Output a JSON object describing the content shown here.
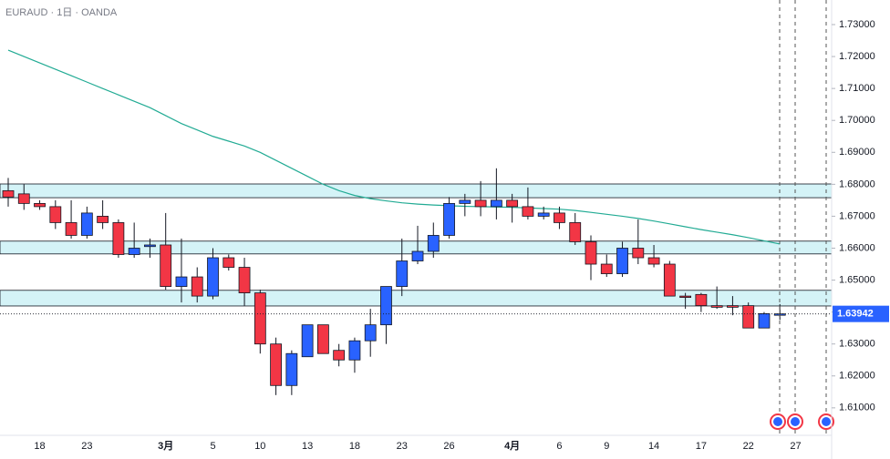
{
  "chart_data": {
    "type": "candlestick",
    "title": "EURAUD · 1日 · OANDA",
    "categories": [
      null,
      null,
      "18",
      null,
      null,
      "23",
      null,
      null,
      null,
      null,
      "3月",
      null,
      null,
      "5",
      null,
      null,
      "10",
      null,
      null,
      "13",
      null,
      null,
      "18",
      null,
      null,
      "23",
      null,
      null,
      "26",
      null,
      null,
      null,
      "4月",
      null,
      null,
      "6",
      null,
      null,
      "9",
      null,
      null,
      "14",
      null,
      null,
      "17",
      null,
      null,
      "22",
      null,
      null,
      "27"
    ],
    "open": [
      1.678,
      1.677,
      1.674,
      1.673,
      1.668,
      1.664,
      1.67,
      1.668,
      1.658,
      1.6605,
      1.661,
      1.648,
      1.651,
      1.645,
      1.657,
      1.654,
      1.646,
      1.63,
      1.617,
      1.626,
      1.636,
      1.628,
      1.625,
      1.631,
      1.636,
      1.648,
      1.656,
      1.659,
      1.664,
      1.674,
      1.675,
      1.673,
      1.675,
      1.673,
      1.67,
      1.671,
      1.668,
      1.662,
      1.655,
      1.652,
      1.66,
      1.657,
      1.655,
      1.645,
      1.6455,
      1.642,
      1.642,
      1.642,
      1.635,
      1.6392,
      null
    ],
    "high": [
      1.682,
      1.68,
      1.675,
      1.675,
      1.675,
      1.673,
      1.675,
      1.669,
      1.668,
      1.663,
      1.671,
      1.663,
      1.654,
      1.66,
      1.658,
      1.657,
      1.647,
      1.632,
      1.628,
      1.636,
      1.636,
      1.63,
      1.632,
      1.641,
      1.648,
      1.663,
      1.667,
      1.668,
      1.676,
      1.677,
      1.681,
      1.685,
      1.677,
      1.679,
      1.673,
      1.673,
      1.671,
      1.664,
      1.658,
      1.662,
      1.669,
      1.661,
      1.656,
      1.646,
      1.646,
      1.648,
      1.645,
      1.643,
      1.64,
      1.6425,
      null
    ],
    "low": [
      1.673,
      1.672,
      1.672,
      1.666,
      1.663,
      1.663,
      1.666,
      1.657,
      1.657,
      1.657,
      1.647,
      1.643,
      1.643,
      1.644,
      1.653,
      1.642,
      1.627,
      1.614,
      1.614,
      1.626,
      1.627,
      1.623,
      1.621,
      1.626,
      1.63,
      1.645,
      1.655,
      1.657,
      1.663,
      1.67,
      1.67,
      1.669,
      1.668,
      1.669,
      1.669,
      1.666,
      1.661,
      1.65,
      1.651,
      1.651,
      1.655,
      1.654,
      1.645,
      1.641,
      1.64,
      1.641,
      1.639,
      1.635,
      1.635,
      1.6375,
      null
    ],
    "close": [
      1.676,
      1.674,
      1.673,
      1.668,
      1.664,
      1.671,
      1.668,
      1.658,
      1.66,
      1.661,
      1.648,
      1.651,
      1.645,
      1.657,
      1.654,
      1.646,
      1.63,
      1.617,
      1.627,
      1.636,
      1.627,
      1.625,
      1.631,
      1.636,
      1.648,
      1.656,
      1.659,
      1.664,
      1.674,
      1.675,
      1.673,
      1.675,
      1.673,
      1.67,
      1.671,
      1.668,
      1.662,
      1.655,
      1.652,
      1.66,
      1.657,
      1.655,
      1.645,
      1.6448,
      1.642,
      1.6415,
      1.6415,
      1.635,
      1.6395,
      1.63942,
      null
    ],
    "up_color": "#2962ff",
    "down_color": "#f23645",
    "ma": {
      "color": "#22ab94",
      "values": [
        1.722,
        1.72,
        1.718,
        1.716,
        1.714,
        1.712,
        1.71,
        1.708,
        1.706,
        1.704,
        1.7015,
        1.699,
        1.697,
        1.695,
        1.6935,
        1.692,
        1.69,
        1.6875,
        1.685,
        1.6825,
        1.68,
        1.678,
        1.6765,
        1.6755,
        1.6748,
        1.6742,
        1.6738,
        1.6735,
        1.6733,
        1.6731,
        1.673,
        1.6729,
        1.6728,
        1.6726,
        1.6724,
        1.6722,
        1.6718,
        1.6712,
        1.6706,
        1.67,
        1.6693,
        1.6685,
        1.6676,
        1.6667,
        1.6658,
        1.665,
        1.6642,
        1.6633,
        1.6623,
        1.6613,
        null
      ]
    },
    "zones": [
      {
        "low": 1.6758,
        "high": 1.6801
      },
      {
        "low": 1.6582,
        "high": 1.6622
      },
      {
        "low": 1.6419,
        "high": 1.6468
      }
    ],
    "zone_color": "#d4f3f7",
    "last_price": 1.63942,
    "ylim": [
      1.6014,
      1.7377
    ],
    "yticks": [
      {
        "value": 1.61,
        "label": "1.61000"
      },
      {
        "value": 1.62,
        "label": "1.62000"
      },
      {
        "value": 1.63,
        "label": "1.63000"
      },
      {
        "value": 1.64,
        "label": "1.64000"
      },
      {
        "value": 1.65,
        "label": "1.65000"
      },
      {
        "value": 1.66,
        "label": "1.66000"
      },
      {
        "value": 1.67,
        "label": "1.67000"
      },
      {
        "value": 1.68,
        "label": "1.68000"
      },
      {
        "value": 1.69,
        "label": "1.69000"
      },
      {
        "value": 1.7,
        "label": "1.70000"
      },
      {
        "value": 1.71,
        "label": "1.71000"
      },
      {
        "value": 1.72,
        "label": "1.72000"
      },
      {
        "value": 1.73,
        "label": "1.73000"
      }
    ]
  }
}
